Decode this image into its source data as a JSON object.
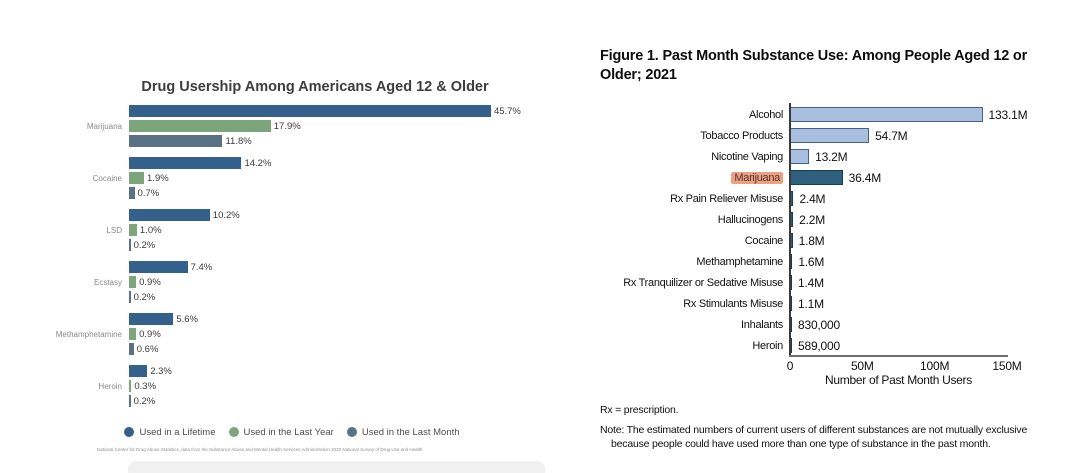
{
  "chart_data": [
    {
      "type": "bar",
      "orientation": "horizontal",
      "title": "Drug Usership Among Americans Aged 12 & Older",
      "unit": "%",
      "xlim": [
        0,
        50
      ],
      "grid": false,
      "legend_position": "bottom",
      "categories": [
        "Marijuana",
        "Cocaine",
        "LSD",
        "Ecstasy",
        "Methamphetamine",
        "Heroin"
      ],
      "series": [
        {
          "name": "Used in a Lifetime",
          "color": "#34618b",
          "values": [
            45.7,
            14.2,
            10.2,
            7.4,
            5.6,
            2.3
          ]
        },
        {
          "name": "Used in the Last Year",
          "color": "#7da57c",
          "values": [
            17.9,
            1.9,
            1.0,
            0.9,
            0.9,
            0.3
          ]
        },
        {
          "name": "Used in the Last Month",
          "color": "#5a7384",
          "values": [
            11.8,
            0.7,
            0.2,
            0.2,
            0.6,
            0.2
          ]
        }
      ],
      "source": "National Center for Drug Abuse Statistics, data from the Substance Abuse and Mental Health Services Administration 2020 National Survey of Drug Use and Health"
    },
    {
      "type": "bar",
      "orientation": "horizontal",
      "title": "Figure 1. Past Month Substance Use: Among People Aged 12 or Older; 2021",
      "title_lines": [
        "Figure 1. Past Month Substance Use: Among People Aged 12 or",
        "Older; 2021"
      ],
      "xlabel": "Number of Past Month Users",
      "xlim": [
        0,
        150
      ],
      "tick_labels": [
        "0",
        "50M",
        "100M",
        "150M"
      ],
      "tick_values": [
        0,
        50,
        100,
        150
      ],
      "grid": false,
      "highlight_category": "Marijuana",
      "items": [
        {
          "category": "Alcohol",
          "value_millions": 133.1,
          "value_label": "133.1M",
          "bar_style": "light",
          "highlight": false
        },
        {
          "category": "Tobacco Products",
          "value_millions": 54.7,
          "value_label": "54.7M",
          "bar_style": "light",
          "highlight": false
        },
        {
          "category": "Nicotine Vaping",
          "value_millions": 13.2,
          "value_label": "13.2M",
          "bar_style": "light",
          "highlight": false
        },
        {
          "category": "Marijuana",
          "value_millions": 36.4,
          "value_label": "36.4M",
          "bar_style": "dark",
          "highlight": true
        },
        {
          "category": "Rx Pain Reliever Misuse",
          "value_millions": 2.4,
          "value_label": "2.4M",
          "bar_style": "dark",
          "highlight": false
        },
        {
          "category": "Hallucinogens",
          "value_millions": 2.2,
          "value_label": "2.2M",
          "bar_style": "dark",
          "highlight": false
        },
        {
          "category": "Cocaine",
          "value_millions": 1.8,
          "value_label": "1.8M",
          "bar_style": "dark",
          "highlight": false
        },
        {
          "category": "Methamphetamine",
          "value_millions": 1.6,
          "value_label": "1.6M",
          "bar_style": "dark",
          "highlight": false
        },
        {
          "category": "Rx Tranquilizer or Sedative Misuse",
          "value_millions": 1.4,
          "value_label": "1.4M",
          "bar_style": "dark",
          "highlight": false
        },
        {
          "category": "Rx Stimulants Misuse",
          "value_millions": 1.1,
          "value_label": "1.1M",
          "bar_style": "dark",
          "highlight": false
        },
        {
          "category": "Inhalants",
          "value_millions": 0.83,
          "value_label": "830,000",
          "bar_style": "dark",
          "highlight": false
        },
        {
          "category": "Heroin",
          "value_millions": 0.589,
          "value_label": "589,000",
          "bar_style": "dark",
          "highlight": false
        }
      ],
      "footnotes": [
        "Rx = prescription.",
        "Note: The estimated numbers of current users of different substances are not mutually exclusive",
        "because people could have used more than one type of substance in the past month."
      ]
    }
  ],
  "colors": {
    "left_lifetime": "#34618b",
    "left_last_year": "#7da57c",
    "left_last_month": "#5a7384",
    "right_light_fill": "#a9bfe0",
    "right_light_border": "#47608a",
    "right_dark_fill": "#2e5f7c",
    "right_dark_border": "#1a3c50",
    "marijuana_highlight": "#eda184"
  }
}
